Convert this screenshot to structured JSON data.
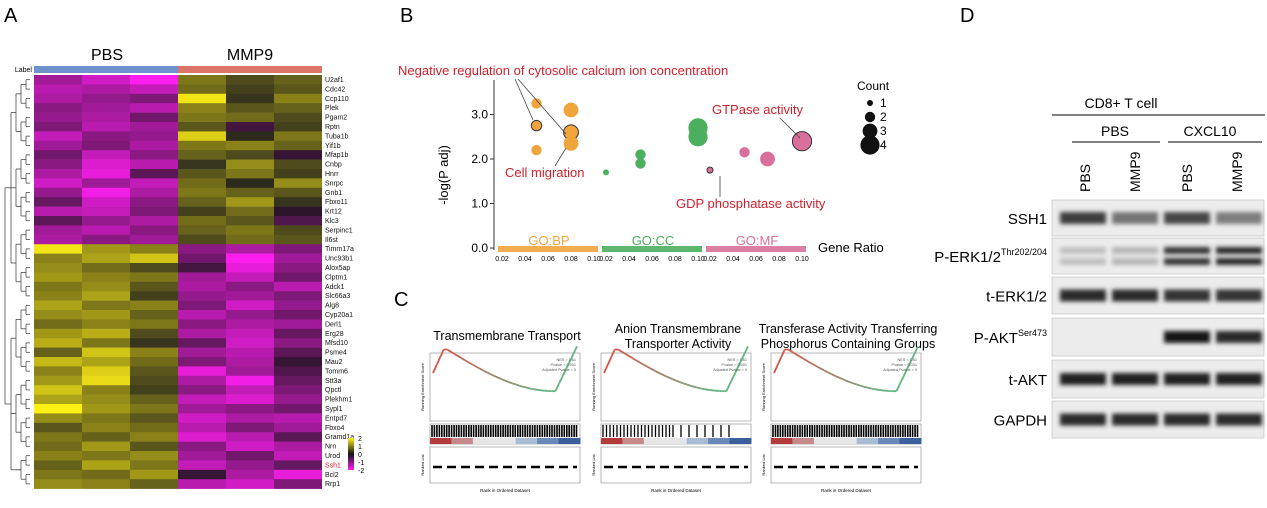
{
  "panel_letters": {
    "a": "A",
    "b": "B",
    "c": "C",
    "d": "D"
  },
  "panelA": {
    "group_label": "Label",
    "group_pbs": "PBS",
    "group_mmp9": "MMP9",
    "colors": {
      "pbs_bar": "#6f92cc",
      "mmp9_bar": "#dc7467"
    },
    "genes": [
      "U2af1",
      "Cdc42",
      "Ccp110",
      "Plek",
      "Pgam2",
      "Rptn",
      "Tuba1b",
      "Yif1b",
      "Mfap1b",
      "Cnbp",
      "Hnrr",
      "Snrpc",
      "Gnb1",
      "Fbxo11",
      "Krt12",
      "Klc3",
      "Serpinc1",
      "Il6st",
      "Timm17a",
      "Unc93b1",
      "Alox5ap",
      "Clptm1",
      "Adck1",
      "Slc66a3",
      "Alg8",
      "Cyp20a1",
      "Derl1",
      "Erg28",
      "Mfsd10",
      "Psme4",
      "Mau2",
      "Tomm6",
      "Stt3a",
      "Qpctl",
      "Plekhm1",
      "Sypl1",
      "Entpd7",
      "Fbxo4",
      "Gramd1a",
      "Nrn",
      "Urod",
      "Ssh1",
      "Bcl2",
      "Rrp1"
    ],
    "highlight_gene": "Ssh1",
    "matrix": [
      [
        -1.2,
        -1.6,
        -2.0,
        0.9,
        0.5,
        0.7
      ],
      [
        -1.4,
        -1.3,
        -1.5,
        0.8,
        0.4,
        0.6
      ],
      [
        -1.3,
        -1.1,
        -0.9,
        1.9,
        0.3,
        1.0
      ],
      [
        -1.0,
        -1.2,
        -1.4,
        1.0,
        0.6,
        0.7
      ],
      [
        -1.1,
        -1.3,
        -0.8,
        0.9,
        0.8,
        0.5
      ],
      [
        -0.9,
        -1.4,
        -1.2,
        0.6,
        -0.4,
        0.4
      ],
      [
        -1.5,
        -1.0,
        -1.1,
        1.7,
        0.2,
        0.9
      ],
      [
        -1.2,
        -0.9,
        -1.3,
        0.9,
        1.0,
        0.7
      ],
      [
        -0.8,
        -1.5,
        -1.0,
        0.7,
        0.5,
        -0.3
      ],
      [
        -1.0,
        -1.7,
        -1.4,
        0.3,
        1.1,
        0.5
      ],
      [
        -1.3,
        -1.8,
        -0.6,
        0.6,
        0.9,
        0.4
      ],
      [
        -1.6,
        -1.2,
        -1.5,
        0.8,
        0.2,
        1.1
      ],
      [
        -1.1,
        -1.9,
        -1.3,
        0.9,
        0.7,
        0.6
      ],
      [
        -0.7,
        -1.6,
        -1.0,
        0.7,
        1.2,
        0.3
      ],
      [
        -1.4,
        -1.5,
        -0.9,
        0.4,
        0.8,
        -0.2
      ],
      [
        -0.6,
        -1.1,
        -1.3,
        0.8,
        0.6,
        -0.5
      ],
      [
        -1.2,
        -1.4,
        -1.0,
        0.7,
        0.9,
        0.5
      ],
      [
        -1.3,
        -1.0,
        -1.2,
        0.5,
        0.8,
        0.6
      ],
      [
        1.9,
        1.2,
        1.0,
        -1.0,
        -1.3,
        -0.9
      ],
      [
        1.0,
        1.3,
        1.6,
        -0.8,
        -2.0,
        -1.2
      ],
      [
        1.1,
        0.8,
        0.5,
        -0.4,
        -1.8,
        -1.0
      ],
      [
        1.2,
        1.0,
        0.9,
        -1.2,
        -1.5,
        -0.8
      ],
      [
        0.9,
        1.1,
        0.6,
        -1.3,
        -1.0,
        -1.4
      ],
      [
        1.0,
        1.3,
        0.4,
        -1.1,
        -1.2,
        -0.9
      ],
      [
        1.3,
        0.9,
        1.0,
        -0.9,
        -1.6,
        -1.1
      ],
      [
        1.1,
        1.2,
        0.7,
        -1.4,
        -1.1,
        -0.8
      ],
      [
        0.8,
        1.0,
        0.9,
        -1.0,
        -1.3,
        -1.2
      ],
      [
        1.2,
        1.4,
        0.5,
        -1.3,
        -1.5,
        -0.7
      ],
      [
        1.4,
        0.9,
        0.3,
        -0.7,
        -1.6,
        -1.0
      ],
      [
        0.7,
        1.6,
        1.0,
        -1.2,
        -1.4,
        -0.6
      ],
      [
        1.5,
        1.3,
        0.8,
        -0.9,
        -1.3,
        -0.3
      ],
      [
        1.0,
        1.7,
        0.6,
        -1.8,
        -1.2,
        -0.5
      ],
      [
        1.2,
        1.8,
        0.5,
        -1.3,
        -1.9,
        -0.7
      ],
      [
        1.6,
        1.0,
        0.4,
        -1.0,
        -1.5,
        -0.9
      ],
      [
        1.3,
        1.1,
        0.7,
        -1.5,
        -1.7,
        -1.1
      ],
      [
        2.0,
        1.2,
        0.9,
        -1.2,
        -1.0,
        -0.8
      ],
      [
        1.1,
        0.9,
        0.6,
        -1.6,
        -1.3,
        -1.4
      ],
      [
        0.6,
        1.0,
        0.8,
        -1.4,
        -0.9,
        -1.2
      ],
      [
        0.9,
        0.7,
        1.0,
        -1.7,
        -1.4,
        -0.6
      ],
      [
        0.8,
        1.2,
        0.6,
        -1.0,
        -1.6,
        -1.3
      ],
      [
        1.0,
        0.9,
        1.1,
        -1.2,
        -0.8,
        -1.5
      ],
      [
        0.7,
        1.3,
        0.9,
        -1.5,
        -1.1,
        -0.7
      ],
      [
        0.9,
        0.8,
        1.2,
        -0.3,
        -1.3,
        -1.8
      ],
      [
        1.1,
        1.0,
        0.7,
        -1.4,
        -1.6,
        -0.9
      ]
    ],
    "legend": [
      "2",
      "1",
      "0",
      "-1",
      "-2"
    ]
  },
  "panelB": {
    "ylabel": "-log(P adj)",
    "yticks": [
      "0.0",
      "1.0",
      "2.0",
      "3.0"
    ],
    "xticks": [
      "0.02",
      "0.04",
      "0.06",
      "0.08",
      "0.10"
    ],
    "gene_ratio_label": "Gene Ratio",
    "facets": [
      {
        "name": "GO:BP",
        "color": "#f0a43c"
      },
      {
        "name": "GO:CC",
        "color": "#4caf5e"
      },
      {
        "name": "GO:MF",
        "color": "#d9709b"
      }
    ],
    "points": [
      {
        "facet": 0,
        "x": 0.05,
        "y": 3.25,
        "count": 2
      },
      {
        "facet": 0,
        "x": 0.05,
        "y": 2.75,
        "count": 2,
        "outlined": true
      },
      {
        "facet": 0,
        "x": 0.05,
        "y": 2.2,
        "count": 2
      },
      {
        "facet": 0,
        "x": 0.08,
        "y": 3.1,
        "count": 3
      },
      {
        "facet": 0,
        "x": 0.08,
        "y": 2.6,
        "count": 3,
        "outlined": true
      },
      {
        "facet": 0,
        "x": 0.08,
        "y": 2.35,
        "count": 3
      },
      {
        "facet": 1,
        "x": 0.02,
        "y": 1.7,
        "count": 1
      },
      {
        "facet": 1,
        "x": 0.05,
        "y": 2.1,
        "count": 2
      },
      {
        "facet": 1,
        "x": 0.05,
        "y": 1.9,
        "count": 2
      },
      {
        "facet": 1,
        "x": 0.1,
        "y": 2.7,
        "count": 4
      },
      {
        "facet": 1,
        "x": 0.1,
        "y": 2.5,
        "count": 4
      },
      {
        "facet": 2,
        "x": 0.02,
        "y": 1.75,
        "count": 1,
        "outlined": true
      },
      {
        "facet": 2,
        "x": 0.05,
        "y": 2.15,
        "count": 2
      },
      {
        "facet": 2,
        "x": 0.07,
        "y": 2.0,
        "count": 3
      },
      {
        "facet": 2,
        "x": 0.1,
        "y": 2.4,
        "count": 4,
        "outlined": true
      }
    ],
    "annotations": {
      "calcium": "Negative regulation of cytosolic calcium ion concentration",
      "gtpase": "GTPase activity",
      "migration": "Cell migration",
      "gdp": "GDP phosphatase activity"
    },
    "annotation_color": "#d0202c",
    "size_legend_title": "Count",
    "size_legend": [
      "1",
      "2",
      "3",
      "4"
    ]
  },
  "panelC": {
    "titles": [
      [
        "Transmembrane Transport"
      ],
      [
        "Anion Transmembrane",
        "Transporter Activity"
      ],
      [
        "Transferase Activity Transferring",
        "Phosphorus Containing Groups"
      ]
    ],
    "ylabel_top": "Running Enrichment Score",
    "ylabel_bottom": "Ranked List",
    "xlabel": "Rank in Ordered Dataset",
    "stats": [
      "NES = 1.61",
      "Pvalue = 0.001",
      "Adjusted Pvalue = 0"
    ]
  },
  "panelD": {
    "title": "CD8+ T cell",
    "treatments": [
      "PBS",
      "CXCL10"
    ],
    "lanes": [
      "PBS",
      "MMP9",
      "PBS",
      "MMP9"
    ],
    "blots": [
      {
        "label": "SSH1",
        "sup": "",
        "intensity": [
          0.75,
          0.45,
          0.7,
          0.4
        ]
      },
      {
        "label": "P-ERK1/2",
        "sup": "Thr202/204",
        "intensity": [
          0.05,
          0.1,
          0.8,
          0.85
        ]
      },
      {
        "label": "t-ERK1/2",
        "sup": "",
        "intensity": [
          0.85,
          0.85,
          0.8,
          0.8
        ]
      },
      {
        "label": "P-AKT",
        "sup": "Ser473",
        "intensity": [
          0.0,
          0.0,
          0.95,
          0.85
        ]
      },
      {
        "label": "t-AKT",
        "sup": "",
        "intensity": [
          0.9,
          0.9,
          0.9,
          0.9
        ]
      },
      {
        "label": "GAPDH",
        "sup": "",
        "intensity": [
          0.85,
          0.85,
          0.85,
          0.85
        ]
      }
    ]
  }
}
